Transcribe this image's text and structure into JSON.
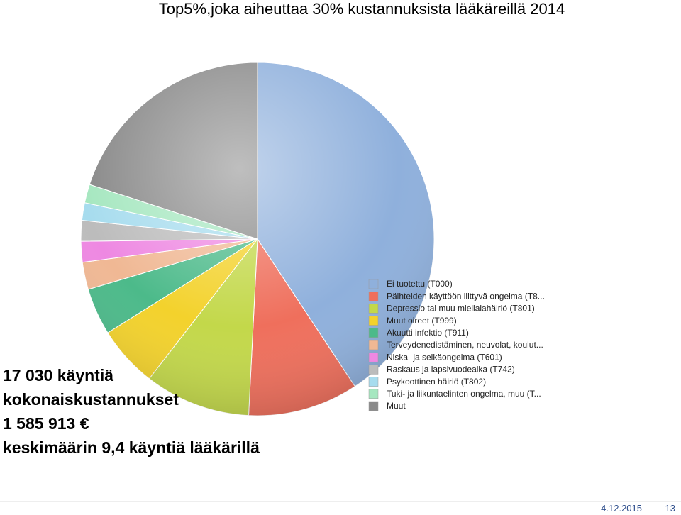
{
  "chart_data": {
    "type": "pie",
    "title": "Top5%,joka aiheuttaa 30% kustannuksista lääkäreillä 2014",
    "categories": [
      "Ei tuotettu (T000)",
      "Päihteiden käyttöön liittyvä ongelma (T8...",
      "Depressio tai muu mielialahäiriö (T801)",
      "Muut oireet (T999)",
      "Akuutti infektio  (T911)",
      "Terveydenedistäminen, neuvolat, koulut...",
      "Niska- ja selkäongelma (T601)",
      "Raskaus ja lapsivuodeaika (T742)",
      "Psykoottinen häiriö (T802)",
      "Tuki- ja liikuntaelinten ongelma, muu (T...",
      "Muut"
    ],
    "values": [
      40.7,
      10.1,
      9.7,
      5.6,
      4.3,
      2.5,
      1.9,
      1.9,
      1.6,
      1.7,
      20.0
    ],
    "colors": [
      "#8fb0dc",
      "#ef6f5c",
      "#c3d84a",
      "#f3d22c",
      "#4cba8a",
      "#f0b894",
      "#ee88e2",
      "#bcbcbc",
      "#a7dcee",
      "#a6e7c0",
      "#8a8a8a"
    ],
    "annotations": [
      "17 030 käyntiä",
      "kokonaiskustannukset",
      "1 585 913 €",
      "keskimäärin  9,4 käyntiä lääkärillä"
    ]
  },
  "footer": {
    "date": "4.12.2015",
    "page": "13"
  }
}
